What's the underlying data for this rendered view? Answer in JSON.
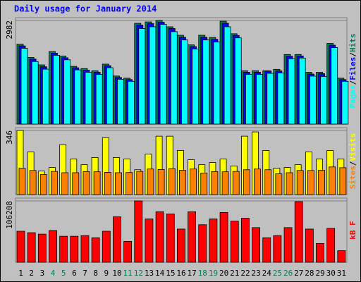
{
  "chart_data": [
    {
      "type": "bar",
      "title": "Daily usage for January 2014",
      "series": [
        {
          "name": "Hits",
          "color": "#00805c",
          "values": [
            2300,
            1917,
            1704,
            2087,
            1960,
            1661,
            1597,
            1534,
            1725,
            1384,
            1321,
            2900,
            2940,
            2982,
            2800,
            2556,
            2279,
            2556,
            2492,
            2960,
            2599,
            1534,
            1534,
            1534,
            1576,
            2002,
            2002,
            1491,
            1491,
            2322,
            1321
          ]
        },
        {
          "name": "Files",
          "color": "#0000ff",
          "values": [
            2250,
            1870,
            1650,
            2040,
            1910,
            1620,
            1550,
            1490,
            1680,
            1340,
            1280,
            2850,
            2890,
            2930,
            2750,
            2500,
            2230,
            2500,
            2440,
            2900,
            2550,
            1490,
            1490,
            1530,
            1530,
            1950,
            1960,
            1440,
            1450,
            2270,
            1280
          ]
        },
        {
          "name": "Pages",
          "color": "#00ffff",
          "values": [
            2180,
            1800,
            1580,
            1980,
            1850,
            1560,
            1490,
            1430,
            1620,
            1290,
            1230,
            2750,
            2800,
            2870,
            2660,
            2420,
            2160,
            2420,
            2360,
            2800,
            2480,
            1430,
            1430,
            1460,
            1470,
            1880,
            1900,
            1380,
            1370,
            2200,
            1230
          ]
        }
      ],
      "separator": "/",
      "ylim": [
        0,
        2982
      ],
      "yticks": [
        2982
      ]
    },
    {
      "type": "bar",
      "series": [
        {
          "name": "Visits",
          "color": "#ffff00",
          "values": [
            346,
            230,
            127,
            146,
            269,
            192,
            161,
            200,
            307,
            200,
            192,
            134,
            219,
            315,
            315,
            238,
            188,
            161,
            173,
            192,
            154,
            315,
            338,
            238,
            142,
            146,
            161,
            230,
            192,
            238,
            192
          ]
        },
        {
          "name": "Sites",
          "color": "#ff8000",
          "values": [
            142,
            130,
            108,
            125,
            118,
            118,
            124,
            123,
            120,
            118,
            119,
            125,
            138,
            135,
            140,
            131,
            138,
            116,
            124,
            123,
            125,
            134,
            138,
            134,
            112,
            118,
            130,
            130,
            131,
            149,
            145
          ]
        }
      ],
      "separator": "/",
      "ylim": [
        0,
        346
      ],
      "yticks": [
        346
      ]
    },
    {
      "type": "bar",
      "categories": [
        "1",
        "2",
        "3",
        "4",
        "5",
        "6",
        "7",
        "8",
        "9",
        "10",
        "11",
        "12",
        "13",
        "14",
        "15",
        "16",
        "17",
        "18",
        "19",
        "20",
        "21",
        "22",
        "23",
        "24",
        "25",
        "26",
        "27",
        "28",
        "29",
        "30",
        "31"
      ],
      "label_colors": [
        "#000000",
        "#000000",
        "#000000",
        "#00805c",
        "#00805c",
        "#000000",
        "#000000",
        "#000000",
        "#000000",
        "#000000",
        "#00805c",
        "#00805c",
        "#000000",
        "#000000",
        "#000000",
        "#000000",
        "#000000",
        "#00805c",
        "#00805c",
        "#000000",
        "#000000",
        "#000000",
        "#000000",
        "#000000",
        "#00805c",
        "#00805c",
        "#000000",
        "#000000",
        "#000000",
        "#000000",
        "#000000"
      ],
      "series": [
        {
          "name": "kB F",
          "color": "#ff0000",
          "values": [
            53700,
            51200,
            48700,
            55000,
            45000,
            45000,
            46200,
            42500,
            53700,
            78700,
            36200,
            106208,
            75000,
            87500,
            83700,
            57500,
            87500,
            65000,
            75000,
            86200,
            71200,
            76200,
            60000,
            42500,
            46200,
            60000,
            105000,
            57500,
            32500,
            58700,
            20000
          ]
        }
      ],
      "ylim": [
        0,
        106208
      ],
      "yticks": [
        106208
      ]
    }
  ]
}
